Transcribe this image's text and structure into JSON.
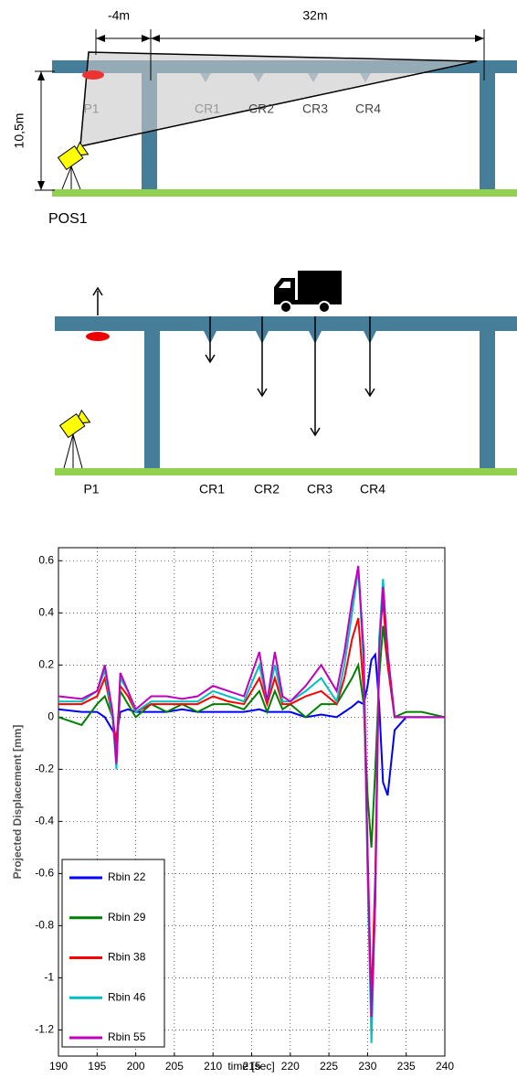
{
  "diagram1": {
    "dim_left": "-4m",
    "dim_right": "32m",
    "height": "10,5m",
    "point": "P1",
    "cross_beams": [
      "CR1",
      "CR2",
      "CR3",
      "CR4"
    ],
    "position": "POS1"
  },
  "diagram2": {
    "point": "P1",
    "cross_beams": [
      "CR1",
      "CR2",
      "CR3",
      "CR4"
    ]
  },
  "chart_data": {
    "type": "line",
    "x_label": "time [sec]",
    "y_label": "Projected Displacement [mm]",
    "x": [
      190,
      193,
      195,
      196,
      197,
      197.5,
      198,
      199,
      200,
      202,
      204,
      206,
      208,
      210,
      212,
      214,
      216,
      217,
      218,
      219,
      220,
      222,
      224,
      226,
      227,
      228,
      228.8,
      229.5,
      230,
      230.5,
      231,
      231.5,
      232,
      232.6,
      233.5,
      235,
      237,
      240
    ],
    "series": [
      {
        "name": "Rbin 22",
        "color": "#0000ff",
        "values": [
          0.03,
          0.02,
          0.02,
          0.0,
          -0.05,
          -0.08,
          0.02,
          0.03,
          0.02,
          0.02,
          0.02,
          0.03,
          0.02,
          0.02,
          0.02,
          0.02,
          0.03,
          0.02,
          0.02,
          0.02,
          0.02,
          0.0,
          0.01,
          0.0,
          0.02,
          0.04,
          0.06,
          0.05,
          0.12,
          0.22,
          0.24,
          0.05,
          -0.25,
          -0.3,
          -0.05,
          0.0,
          0.0,
          0.0
        ]
      },
      {
        "name": "Rbin 29",
        "color": "#008000",
        "values": [
          0.0,
          -0.03,
          0.05,
          0.08,
          0.0,
          -0.15,
          0.1,
          0.05,
          0.0,
          0.05,
          0.02,
          0.05,
          0.02,
          0.05,
          0.05,
          0.03,
          0.1,
          0.02,
          0.1,
          0.03,
          0.05,
          0.0,
          0.05,
          0.05,
          0.1,
          0.15,
          0.2,
          0.05,
          -0.3,
          -0.5,
          -0.2,
          0.15,
          0.35,
          0.2,
          0.0,
          0.02,
          0.02,
          0.0
        ]
      },
      {
        "name": "Rbin 38",
        "color": "#ff0000",
        "values": [
          0.05,
          0.05,
          0.08,
          0.15,
          0.0,
          -0.1,
          0.12,
          0.08,
          0.02,
          0.05,
          0.05,
          0.05,
          0.05,
          0.08,
          0.06,
          0.05,
          0.15,
          0.05,
          0.15,
          0.05,
          0.05,
          0.08,
          0.1,
          0.05,
          0.15,
          0.3,
          0.38,
          0.1,
          -0.5,
          -1.1,
          -0.6,
          0.3,
          0.45,
          0.2,
          0.0,
          0.0,
          0.0,
          0.0
        ]
      },
      {
        "name": "Rbin 46",
        "color": "#00bfbf",
        "values": [
          0.06,
          0.06,
          0.1,
          0.18,
          0.0,
          -0.2,
          0.15,
          0.1,
          0.02,
          0.06,
          0.06,
          0.06,
          0.06,
          0.1,
          0.08,
          0.06,
          0.2,
          0.06,
          0.2,
          0.06,
          0.06,
          0.1,
          0.15,
          0.06,
          0.2,
          0.4,
          0.57,
          0.2,
          -0.6,
          -1.25,
          -0.7,
          0.3,
          0.53,
          0.25,
          0.0,
          0.0,
          0.0,
          0.0
        ]
      },
      {
        "name": "Rbin 55",
        "color": "#bf00bf",
        "values": [
          0.08,
          0.07,
          0.1,
          0.2,
          0.02,
          -0.18,
          0.17,
          0.1,
          0.03,
          0.08,
          0.08,
          0.07,
          0.08,
          0.12,
          0.1,
          0.08,
          0.25,
          0.06,
          0.25,
          0.08,
          0.06,
          0.12,
          0.2,
          0.1,
          0.25,
          0.45,
          0.58,
          0.25,
          -0.55,
          -1.15,
          -0.7,
          0.25,
          0.5,
          0.25,
          0.0,
          0.0,
          0.0,
          0.0
        ]
      }
    ],
    "xlim": [
      190,
      240
    ],
    "xticks": [
      190,
      195,
      200,
      205,
      210,
      215,
      220,
      225,
      230,
      235,
      240
    ],
    "ylim": [
      -1.3,
      0.65
    ],
    "yticks": [
      -1.2,
      -1,
      -0.8,
      -0.6,
      -0.4,
      -0.2,
      0,
      0.2,
      0.4,
      0.6
    ],
    "grid": true,
    "legend": "lower left"
  }
}
